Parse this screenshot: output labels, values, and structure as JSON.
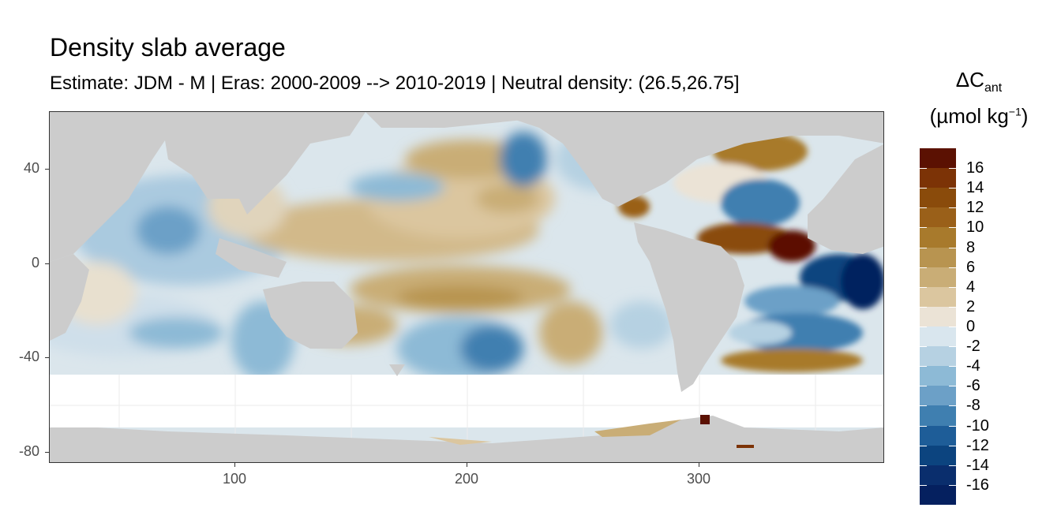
{
  "title": "Density slab average",
  "subtitle": "Estimate: JDM - M | Eras: 2000-2009 --> 2010-2019 | Neutral density: (26.5,26.75]",
  "legend": {
    "title_symbol": "ΔC",
    "title_sub": "ant",
    "unit_open": "(µmol kg",
    "unit_sup": "−1",
    "unit_close": ")",
    "colors": [
      "#5b1102",
      "#7c3306",
      "#8a4b0b",
      "#9a6019",
      "#a87a2c",
      "#b89450",
      "#c9ad76",
      "#dbc69f",
      "#ebe3d6",
      "#d9e6ee",
      "#b6d1e2",
      "#8dbad6",
      "#6ca0c7",
      "#3f7fb0",
      "#1e5d98",
      "#0c447f",
      "#0a2e6d",
      "#05205f"
    ],
    "labels": [
      "16",
      "14",
      "12",
      "10",
      "8",
      "6",
      "4",
      "2",
      "0",
      "-2",
      "-4",
      "-6",
      "-8",
      "-10",
      "-12",
      "-14",
      "-16"
    ]
  },
  "axes": {
    "y_ticks": [
      "40",
      "0",
      "-40",
      "-80"
    ],
    "x_ticks": [
      "100",
      "200",
      "300"
    ],
    "x_range": [
      20,
      380
    ],
    "y_range": [
      -85,
      65
    ]
  },
  "map": {
    "land_color": "#cccccc",
    "nodata_color": "#ffffff",
    "features": [
      "Pacific Ocean",
      "Atlantic Ocean",
      "Indian Ocean",
      "Southern Ocean",
      "Australia",
      "Africa",
      "Americas",
      "Antarctica"
    ]
  }
}
